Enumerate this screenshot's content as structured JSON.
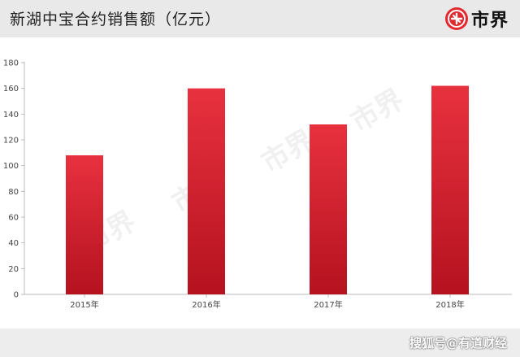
{
  "header": {
    "title": "新湖中宝合约销售额（亿元）",
    "logo_text": "市界",
    "logo_color": "#e3292f"
  },
  "chart_data": {
    "type": "bar",
    "title": "新湖中宝合约销售额（亿元）",
    "categories": [
      "2015年",
      "2016年",
      "2017年",
      "2018年"
    ],
    "values": [
      108,
      160,
      132,
      162
    ],
    "ylim": [
      0,
      180
    ],
    "yticks": [
      0,
      20,
      40,
      60,
      80,
      100,
      120,
      140,
      160,
      180
    ],
    "grid": false,
    "legend": "none",
    "bar_color_top": "#e8313f",
    "bar_color_bottom": "#b5121f"
  },
  "watermark": "市界",
  "footer": {
    "source": "搜狐号@有道财经"
  }
}
